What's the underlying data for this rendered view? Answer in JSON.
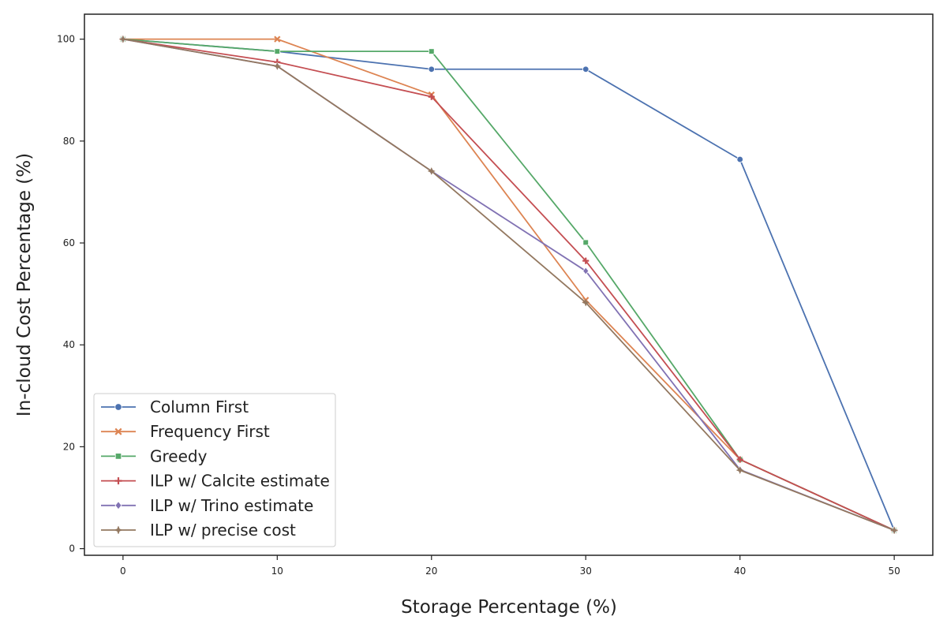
{
  "chart_data": {
    "type": "line",
    "title": "",
    "xlabel": "Storage Percentage (%)",
    "ylabel": "In-cloud Cost Percentage (%)",
    "x_ticks": [
      0,
      10,
      20,
      30,
      40,
      50
    ],
    "y_ticks": [
      0,
      20,
      40,
      60,
      80,
      100
    ],
    "xlim": [
      -2.5,
      52.5
    ],
    "ylim": [
      -1.3,
      104.9
    ],
    "grid": false,
    "legend_position": "lower-left",
    "x": [
      0,
      10,
      20,
      30,
      40,
      50
    ],
    "series": [
      {
        "name": "Column First",
        "color": "#4c72b0",
        "marker": "circle",
        "values": [
          100,
          97.6,
          94.1,
          94.1,
          76.4,
          3.6
        ]
      },
      {
        "name": "Frequency First",
        "color": "#dd8452",
        "marker": "x",
        "values": [
          100,
          100,
          89.1,
          48.8,
          17.5,
          3.6
        ]
      },
      {
        "name": "Greedy",
        "color": "#55a868",
        "marker": "square",
        "values": [
          100,
          97.6,
          97.6,
          60.1,
          17.5,
          3.6
        ]
      },
      {
        "name": "ILP w/ Calcite estimate",
        "color": "#c44e52",
        "marker": "plus",
        "values": [
          100,
          95.5,
          88.7,
          56.5,
          17.5,
          3.6
        ]
      },
      {
        "name": "ILP w/ Trino estimate",
        "color": "#8172b3",
        "marker": "diamond",
        "values": [
          100,
          94.7,
          74.1,
          54.5,
          15.5,
          3.6
        ]
      },
      {
        "name": "ILP w/ precise cost",
        "color": "#937860",
        "marker": "star",
        "values": [
          100,
          94.7,
          74.1,
          48.3,
          15.4,
          3.6
        ]
      }
    ]
  }
}
